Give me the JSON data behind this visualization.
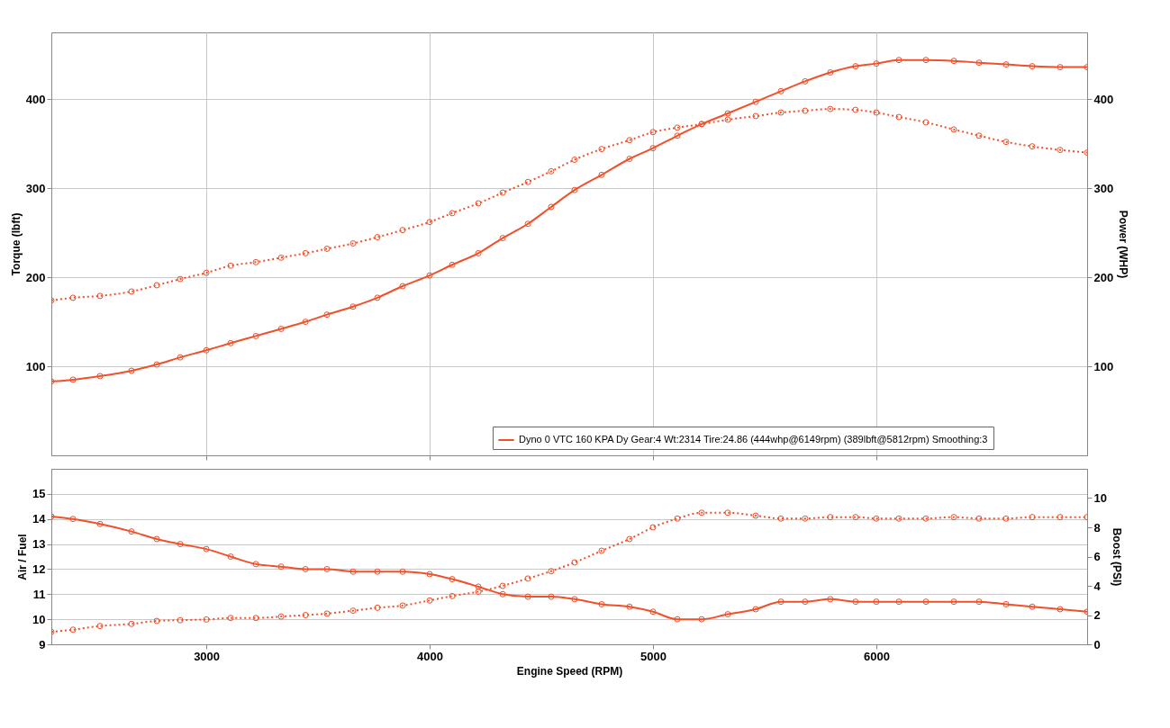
{
  "chart_data": [
    {
      "type": "line",
      "ylabel": "Torque (lbft)",
      "y2label": "Power (WHP)",
      "x": [
        2306,
        2403,
        2524,
        2665,
        2778,
        2883,
        3000,
        3109,
        3222,
        3335,
        3444,
        3540,
        3657,
        3766,
        3879,
        4000,
        4101,
        4218,
        4327,
        4440,
        4544,
        4649,
        4770,
        4895,
        5000,
        5109,
        5218,
        5335,
        5460,
        5573,
        5681,
        5794,
        5907,
        6000,
        6101,
        6222,
        6347,
        6460,
        6581,
        6698,
        6823,
        6944
      ],
      "xlim": [
        2306,
        6944
      ],
      "xticks": [
        3000,
        4000,
        5000,
        6000
      ],
      "ylim": [
        0,
        475
      ],
      "yticks": [
        100,
        200,
        300,
        400
      ],
      "y2lim": [
        0,
        475
      ],
      "y2ticks": [
        100,
        200,
        300,
        400
      ],
      "tick_labels": "y",
      "grid": true,
      "legend": "bottom right",
      "marker": "circle",
      "series": [
        {
          "color": "#f0502a",
          "line_style": "dotted",
          "axis": "y",
          "values": [
            174,
            177,
            179,
            184,
            191,
            198,
            205,
            213,
            217,
            222,
            227,
            232,
            238,
            245,
            253,
            262,
            272,
            283,
            295,
            307,
            319,
            332,
            344,
            354,
            363,
            368,
            372,
            377,
            381,
            385,
            387,
            389,
            388,
            385,
            380,
            374,
            366,
            359,
            352,
            347,
            343,
            340
          ]
        },
        {
          "name": "Dyno 0 VTC 160 KPA Dy Gear:4 Wt:2314 Tire:24.86 (444whp@6149rpm) (389lbft@5812rpm) Smoothing:3",
          "color": "#f0502a",
          "line_style": "solid",
          "axis": "y2",
          "values": [
            83,
            85,
            89,
            95,
            102,
            110,
            118,
            126,
            134,
            142,
            150,
            158,
            167,
            177,
            190,
            202,
            214,
            227,
            244,
            260,
            279,
            298,
            315,
            333,
            345,
            359,
            372,
            384,
            397,
            409,
            420,
            430,
            437,
            440,
            444,
            444,
            443,
            441,
            439,
            437,
            436,
            436
          ]
        }
      ]
    },
    {
      "type": "line",
      "xlabel": "Engine Speed (RPM)",
      "ylabel": "Air / Fuel",
      "y2label": "Boost (PSI)",
      "x": [
        2306,
        2403,
        2524,
        2665,
        2778,
        2883,
        3000,
        3109,
        3222,
        3335,
        3444,
        3540,
        3657,
        3766,
        3879,
        4000,
        4101,
        4218,
        4327,
        4440,
        4544,
        4649,
        4770,
        4895,
        5000,
        5109,
        5218,
        5335,
        5460,
        5573,
        5681,
        5794,
        5907,
        6000,
        6101,
        6222,
        6347,
        6460,
        6581,
        6698,
        6823,
        6944
      ],
      "xlim": [
        2306,
        6944
      ],
      "xticks": [
        3000,
        4000,
        5000,
        6000
      ],
      "ylim": [
        9,
        16
      ],
      "yticks": [
        9,
        10,
        11,
        12,
        13,
        14,
        15
      ],
      "y2lim": [
        0,
        12
      ],
      "y2ticks": [
        0,
        2,
        4,
        6,
        8,
        10
      ],
      "grid": "y",
      "marker": "circle",
      "series": [
        {
          "color": "#f0502a",
          "line_style": "solid",
          "axis": "y",
          "values": [
            14.1,
            14.0,
            13.8,
            13.5,
            13.2,
            13.0,
            12.8,
            12.5,
            12.2,
            12.1,
            12.0,
            12.0,
            11.9,
            11.9,
            11.9,
            11.8,
            11.6,
            11.3,
            11.0,
            10.9,
            10.9,
            10.8,
            10.6,
            10.5,
            10.3,
            10.0,
            10.0,
            10.2,
            10.4,
            10.7,
            10.7,
            10.8,
            10.7,
            10.7,
            10.7,
            10.7,
            10.7,
            10.7,
            10.6,
            10.5,
            10.4,
            10.3
          ]
        },
        {
          "color": "#f0502a",
          "line_style": "dotted",
          "axis": "y2",
          "values": [
            0.85,
            1.0,
            1.25,
            1.4,
            1.6,
            1.65,
            1.7,
            1.8,
            1.8,
            1.9,
            2.0,
            2.1,
            2.3,
            2.5,
            2.65,
            3.0,
            3.3,
            3.6,
            4.0,
            4.5,
            5.0,
            5.6,
            6.4,
            7.2,
            8.0,
            8.6,
            9.0,
            9.0,
            8.8,
            8.6,
            8.6,
            8.7,
            8.7,
            8.6,
            8.6,
            8.6,
            8.7,
            8.6,
            8.6,
            8.7,
            8.7,
            8.7
          ]
        }
      ]
    }
  ]
}
